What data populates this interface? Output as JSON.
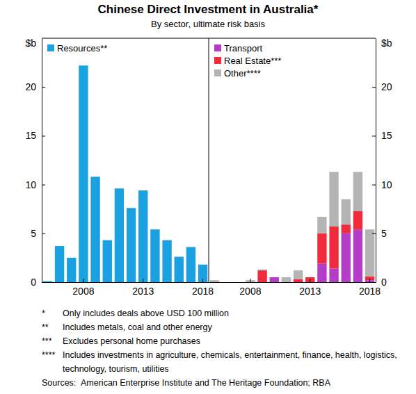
{
  "title": "Chinese Direct Investment in Australia*",
  "subtitle": "By sector, ultimate risk basis",
  "notes": [
    {
      "marker": "*",
      "text": "Only includes deals above USD 100 million"
    },
    {
      "marker": "**",
      "text": "Includes metals, coal and other energy"
    },
    {
      "marker": "***",
      "text": "Excludes personal home purchases"
    },
    {
      "marker": "****",
      "text": "Includes investments in agriculture, chemicals, entertainment, finance, health, logistics, technology, tourism, utilities"
    }
  ],
  "sources_label": "Sources:",
  "sources": "American Enterprise Institute and The Heritage Foundation; RBA",
  "chart_data": [
    {
      "type": "bar",
      "y_label": "$b",
      "categories": [
        null,
        null,
        null,
        "2008",
        null,
        null,
        null,
        null,
        "2013",
        null,
        null,
        null,
        null,
        "2018"
      ],
      "series": [
        {
          "name": "Resources**",
          "color": "#1ba1e2",
          "values": [
            0.1,
            3.7,
            2.5,
            22.2,
            10.8,
            4.3,
            9.6,
            7.6,
            9.4,
            5.4,
            4.3,
            2.6,
            3.6,
            1.8
          ]
        }
      ],
      "ylim": [
        0,
        25
      ],
      "yticks": [
        0,
        5,
        10,
        15,
        20
      ],
      "grid": false,
      "legend": "top-left"
    },
    {
      "type": "bar",
      "y_label": "$b",
      "stacked": true,
      "categories": [
        null,
        null,
        null,
        "2008",
        null,
        null,
        null,
        null,
        "2013",
        null,
        null,
        null,
        null,
        "2018"
      ],
      "series": [
        {
          "name": "Transport",
          "color": "#b33dc6",
          "values": [
            0,
            0,
            0,
            0,
            0,
            0.5,
            0,
            0,
            0,
            1.9,
            1.4,
            5.0,
            5.4,
            0.2
          ]
        },
        {
          "name": "Real Estate***",
          "color": "#ef2b3c",
          "values": [
            0,
            0,
            0,
            0,
            1.2,
            0,
            0,
            0.3,
            0.5,
            3.1,
            4.3,
            0.9,
            1.9,
            0.4
          ]
        },
        {
          "name": "Other****",
          "color": "#b4b4b4",
          "values": [
            0.2,
            0,
            0,
            0.2,
            0.1,
            0,
            0.5,
            0.9,
            0,
            1.7,
            5.6,
            2.6,
            4.0,
            4.8
          ]
        }
      ],
      "ylim": [
        0,
        25
      ],
      "yticks": [
        0,
        5,
        10,
        15,
        20
      ],
      "grid": false,
      "legend": "top-left"
    }
  ]
}
